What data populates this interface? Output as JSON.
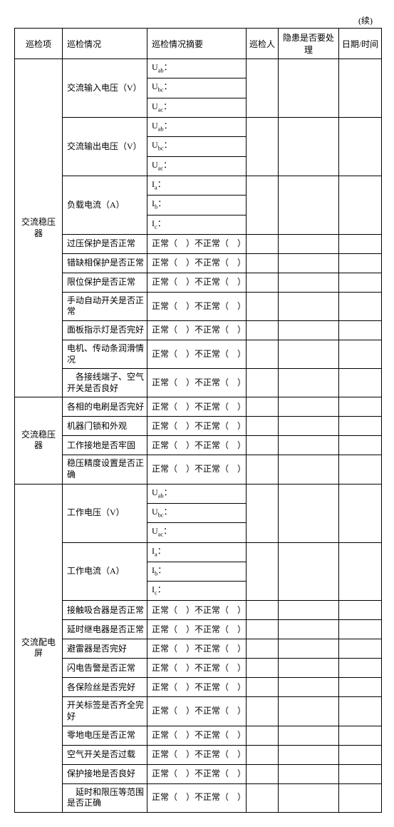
{
  "continued": "(续)",
  "headers": {
    "c1": "巡检项",
    "c2": "巡检情况",
    "c3": "巡检情况摘要",
    "c4": "巡检人",
    "c5": "隐患是否要处理",
    "c6": "日期/时间"
  },
  "normal_abnormal": "正常（　）不正常（　）",
  "subscripts": {
    "uab": "U<sub>ab</sub>：",
    "ubc": "U<sub>bc</sub>：",
    "uac": "U<sub>ac</sub>：",
    "ia": "I<sub>a</sub>：",
    "ib": "I<sub>b</sub>：",
    "ic": "I<sub>c</sub>："
  },
  "section1": {
    "name": "交流稳压器",
    "r1": "交流输入电压（V）",
    "r2": "交流输出电压（V）",
    "r3": "负载电流（A）",
    "r4": "过压保护是否正常",
    "r5": "错缺相保护是否正常",
    "r6": "限位保护是否正常",
    "r7": "手动自动开关是否正常",
    "r8": "面板指示灯是否完好",
    "r9": "电机、传动条润滑情况",
    "r10": "　各接线端子、空气开关是否良好"
  },
  "section2": {
    "name": "交流稳压器",
    "r1": "各相的电刷是否完好",
    "r2": "机器门锁和外观",
    "r3": "工作接地是否牢固",
    "r4": "稳压精度设置是否正确"
  },
  "section3": {
    "name": "交流配电屏",
    "r1": "工作电压（V）",
    "r2": "工作电流（A）",
    "r3": "接触吸合器是否正常",
    "r4": "延时继电器是否正常",
    "r5": "避雷器是否完好",
    "r6": "闪电告警是否正常",
    "r7": "各保险丝是否完好",
    "r8": "开关标签是否齐全完好",
    "r9": "零地电压是否正常",
    "r10": "空气开关是否过载",
    "r11": "保护接地是否良好",
    "r12": "　延时和限压等范围是否正确"
  }
}
